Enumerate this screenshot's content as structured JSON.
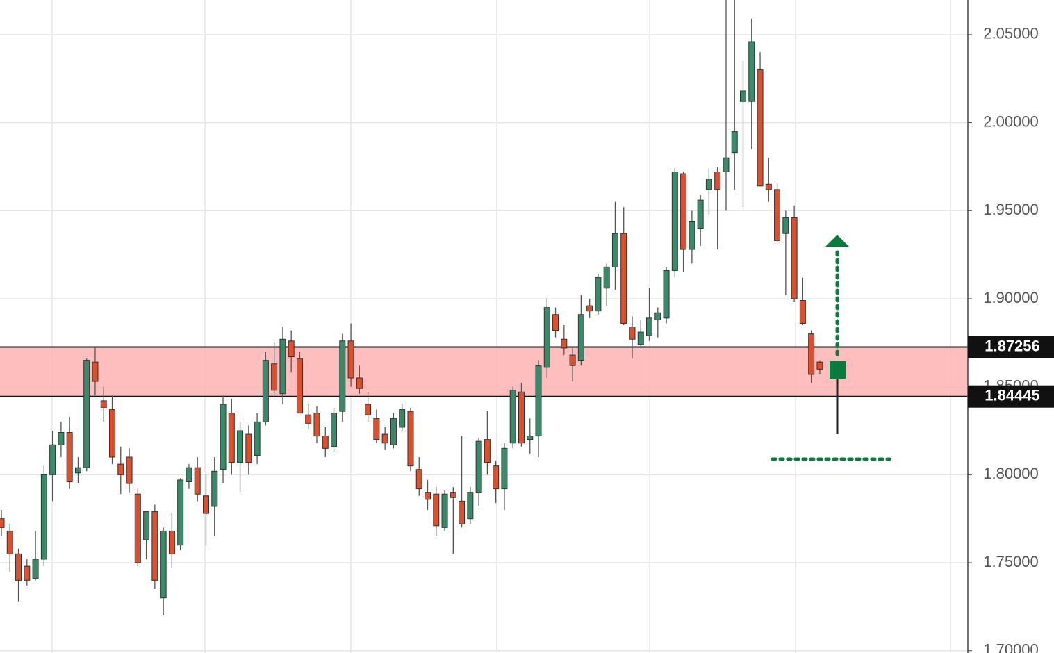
{
  "chart_data": {
    "type": "candlestick",
    "up_color": "#3a8a6a",
    "down_color": "#d9512f",
    "ylim": [
      1.6987,
      2.0697
    ],
    "yticks": [
      {
        "value": 1.7,
        "label": "1.70000"
      },
      {
        "value": 1.75,
        "label": "1.75000"
      },
      {
        "value": 1.8,
        "label": "1.80000"
      },
      {
        "value": 1.85,
        "label": "1.85000"
      },
      {
        "value": 1.9,
        "label": "1.90000"
      },
      {
        "value": 1.95,
        "label": "1.95000"
      },
      {
        "value": 2.0,
        "label": "2.00000"
      },
      {
        "value": 2.05,
        "label": "2.05000"
      }
    ],
    "grid": true,
    "zone": [
      1.87256,
      1.84445
    ],
    "zone_color": "#ffb3b3",
    "open": [
      1.775,
      1.768,
      1.755,
      1.748,
      1.741,
      1.752,
      1.8,
      1.817,
      1.824,
      1.801,
      1.804,
      1.864,
      1.842,
      1.837,
      1.806,
      1.81,
      1.789,
      1.763,
      1.779,
      1.73,
      1.768,
      1.76,
      1.796,
      1.804,
      1.788,
      1.782,
      1.803,
      1.835,
      1.807,
      1.823,
      1.811,
      1.83,
      1.863,
      1.846,
      1.876,
      1.866,
      1.834,
      1.835,
      1.822,
      1.816,
      1.836,
      1.876,
      1.855,
      1.84,
      1.832,
      1.823,
      1.817,
      1.827,
      1.836,
      1.803,
      1.79,
      1.789,
      1.77,
      1.79,
      1.785,
      1.775,
      1.79,
      1.82,
      1.805,
      1.792,
      1.818,
      1.847,
      1.82,
      1.822,
      1.861,
      1.891,
      1.877,
      1.868,
      1.865,
      1.896,
      1.893,
      1.906,
      1.918,
      1.937,
      1.884,
      1.874,
      1.879,
      1.888,
      1.889,
      1.916,
      1.971,
      1.928,
      1.94,
      1.962,
      1.972,
      1.972,
      1.983,
      2.012,
      2.012,
      2.03,
      1.965,
      1.962,
      1.937,
      1.946,
      1.899,
      1.88,
      1.864
    ],
    "high": [
      1.78,
      1.772,
      1.758,
      1.752,
      1.768,
      1.805,
      1.825,
      1.83,
      1.833,
      1.81,
      1.866,
      1.872,
      1.85,
      1.845,
      1.816,
      1.815,
      1.792,
      1.779,
      1.783,
      1.77,
      1.778,
      1.798,
      1.806,
      1.81,
      1.8,
      1.81,
      1.845,
      1.843,
      1.83,
      1.828,
      1.835,
      1.87,
      1.875,
      1.884,
      1.882,
      1.87,
      1.84,
      1.839,
      1.827,
      1.838,
      1.88,
      1.886,
      1.862,
      1.847,
      1.837,
      1.827,
      1.835,
      1.84,
      1.838,
      1.81,
      1.797,
      1.793,
      1.791,
      1.793,
      1.822,
      1.793,
      1.821,
      1.836,
      1.808,
      1.818,
      1.85,
      1.852,
      1.832,
      1.865,
      1.9,
      1.895,
      1.885,
      1.872,
      1.902,
      1.9,
      1.914,
      1.92,
      1.955,
      1.952,
      1.89,
      1.888,
      1.906,
      1.895,
      1.918,
      1.974,
      1.972,
      1.95,
      1.959,
      1.974,
      1.975,
      2.07,
      2.07,
      2.035,
      2.059,
      2.04,
      1.98,
      1.966,
      1.95,
      1.953,
      1.912,
      1.882,
      1.865
    ],
    "low": [
      1.765,
      1.745,
      1.728,
      1.737,
      1.74,
      1.748,
      1.785,
      1.81,
      1.792,
      1.795,
      1.802,
      1.845,
      1.83,
      1.806,
      1.789,
      1.79,
      1.748,
      1.752,
      1.735,
      1.72,
      1.747,
      1.757,
      1.792,
      1.785,
      1.76,
      1.765,
      1.795,
      1.8,
      1.79,
      1.8,
      1.806,
      1.828,
      1.845,
      1.84,
      1.858,
      1.835,
      1.826,
      1.818,
      1.81,
      1.813,
      1.83,
      1.85,
      1.846,
      1.83,
      1.818,
      1.814,
      1.815,
      1.825,
      1.802,
      1.788,
      1.78,
      1.765,
      1.768,
      1.755,
      1.77,
      1.772,
      1.782,
      1.8,
      1.784,
      1.78,
      1.815,
      1.816,
      1.812,
      1.81,
      1.855,
      1.878,
      1.868,
      1.853,
      1.862,
      1.889,
      1.891,
      1.896,
      1.905,
      1.885,
      1.866,
      1.872,
      1.876,
      1.878,
      1.886,
      1.912,
      1.915,
      1.92,
      1.93,
      1.948,
      1.928,
      1.95,
      1.962,
      1.952,
      1.985,
      1.965,
      1.955,
      1.932,
      1.902,
      1.898,
      1.885,
      1.852,
      1.857
    ],
    "close": [
      1.77,
      1.755,
      1.74,
      1.74,
      1.752,
      1.8,
      1.817,
      1.824,
      1.796,
      1.804,
      1.865,
      1.853,
      1.838,
      1.81,
      1.8,
      1.795,
      1.75,
      1.779,
      1.74,
      1.768,
      1.755,
      1.797,
      1.804,
      1.789,
      1.778,
      1.802,
      1.84,
      1.807,
      1.825,
      1.807,
      1.83,
      1.865,
      1.848,
      1.877,
      1.867,
      1.835,
      1.829,
      1.822,
      1.815,
      1.835,
      1.876,
      1.855,
      1.849,
      1.834,
      1.82,
      1.818,
      1.832,
      1.837,
      1.805,
      1.792,
      1.786,
      1.771,
      1.789,
      1.787,
      1.772,
      1.79,
      1.819,
      1.807,
      1.792,
      1.815,
      1.848,
      1.818,
      1.822,
      1.862,
      1.895,
      1.882,
      1.872,
      1.862,
      1.891,
      1.893,
      1.912,
      1.918,
      1.937,
      1.886,
      1.877,
      1.881,
      1.889,
      1.892,
      1.916,
      1.972,
      1.928,
      1.944,
      1.956,
      1.968,
      1.962,
      1.98,
      1.995,
      2.018,
      2.046,
      1.964,
      1.962,
      1.933,
      1.946,
      1.9,
      1.886,
      1.857,
      1.86
    ]
  }
}
